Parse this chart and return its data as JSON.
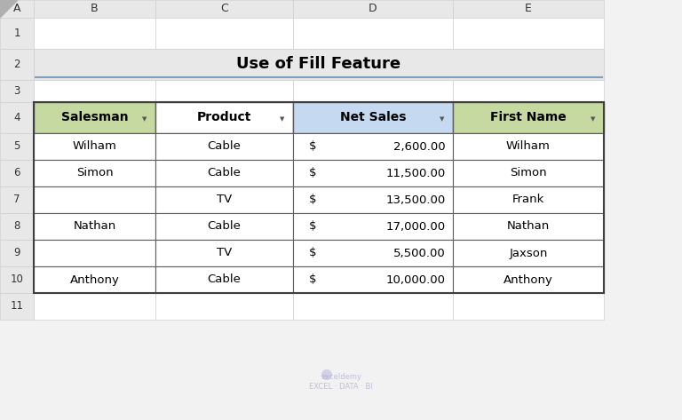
{
  "title": "Use of Fill Feature",
  "col_headers": [
    "Salesman",
    "Product",
    "Net Sales",
    "First Name"
  ],
  "col_header_bg": [
    "#c6d9a0",
    "#ffffff",
    "#c5d9f1",
    "#c6d9a0"
  ],
  "rows": [
    [
      "Wilham",
      "Cable",
      "$    2,600.00",
      "Wilham"
    ],
    [
      "Simon",
      "Cable",
      "$   11,500.00",
      "Simon"
    ],
    [
      "",
      "TV",
      "$   13,500.00",
      "Frank"
    ],
    [
      "Nathan",
      "Cable",
      "$   17,000.00",
      "Nathan"
    ],
    [
      "",
      "TV",
      "$    5,500.00",
      "Jaxson"
    ],
    [
      "Anthony",
      "Cable",
      "$   10,000.00",
      "Anthony"
    ]
  ],
  "col_letters": [
    "A",
    "B",
    "C",
    "D",
    "E"
  ],
  "row_numbers": [
    "1",
    "2",
    "3",
    "4",
    "5",
    "6",
    "7",
    "8",
    "9",
    "10",
    "11"
  ],
  "bg_color": "#f2f2f2",
  "cell_bg": "#ffffff",
  "header_col_bg": "#e8e8e8",
  "grid_color": "#d0d0d0",
  "title_bg": "#e8e8e8",
  "border_color": "#5b5b5b",
  "title_underline_color": "#7f9fbf",
  "watermark_text": "exceldemy\nEXCEL - DATA - BI"
}
